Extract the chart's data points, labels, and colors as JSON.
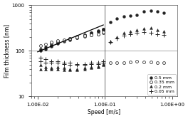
{
  "xlabel": "Speed [m/s]",
  "ylabel": "Film thickness [nm]",
  "xlim": [
    0.008,
    1.2
  ],
  "ylim": [
    10,
    1000
  ],
  "legend_labels": [
    "0.5 mm",
    "0.35 mm",
    "0.2 mm",
    "0.05 mm"
  ],
  "vline_x": 0.1,
  "hline_y": 100,
  "fit_line_x": [
    0.01,
    0.095
  ],
  "fit_line_y": [
    95,
    370
  ],
  "series_0_5mm": {
    "x": [
      0.011,
      0.011,
      0.013,
      0.013,
      0.016,
      0.016,
      0.016,
      0.02,
      0.02,
      0.02,
      0.025,
      0.025,
      0.025,
      0.03,
      0.03,
      0.03,
      0.038,
      0.038,
      0.038,
      0.05,
      0.05,
      0.05,
      0.063,
      0.063,
      0.063,
      0.079,
      0.079,
      0.079,
      0.095,
      0.095,
      0.095,
      0.12,
      0.15,
      0.19,
      0.24,
      0.3,
      0.38,
      0.48,
      0.6,
      0.76
    ],
    "y": [
      100,
      110,
      110,
      120,
      125,
      130,
      140,
      145,
      150,
      158,
      160,
      165,
      170,
      175,
      180,
      185,
      195,
      200,
      205,
      215,
      220,
      225,
      240,
      245,
      250,
      265,
      270,
      275,
      290,
      295,
      300,
      430,
      510,
      560,
      590,
      610,
      720,
      760,
      740,
      680
    ]
  },
  "series_0_35mm": {
    "x": [
      0.011,
      0.013,
      0.016,
      0.016,
      0.02,
      0.02,
      0.025,
      0.025,
      0.03,
      0.03,
      0.038,
      0.038,
      0.05,
      0.05,
      0.063,
      0.063,
      0.079,
      0.079,
      0.095,
      0.095,
      0.12,
      0.15,
      0.19,
      0.24,
      0.3,
      0.38,
      0.48,
      0.6,
      0.76
    ],
    "y": [
      130,
      140,
      150,
      155,
      160,
      165,
      170,
      175,
      185,
      190,
      195,
      200,
      210,
      215,
      220,
      225,
      230,
      235,
      250,
      255,
      55,
      55,
      55,
      57,
      58,
      56,
      56,
      54,
      54
    ]
  },
  "series_0_2mm": {
    "x": [
      0.011,
      0.011,
      0.013,
      0.013,
      0.016,
      0.016,
      0.02,
      0.02,
      0.025,
      0.025,
      0.03,
      0.03,
      0.038,
      0.038,
      0.05,
      0.05,
      0.063,
      0.063,
      0.079,
      0.079,
      0.095,
      0.095,
      0.12,
      0.15,
      0.19,
      0.24,
      0.3,
      0.38,
      0.48,
      0.6,
      0.76
    ],
    "y": [
      40,
      50,
      40,
      45,
      40,
      42,
      40,
      44,
      38,
      42,
      38,
      40,
      38,
      40,
      40,
      42,
      42,
      44,
      44,
      46,
      50,
      52,
      160,
      200,
      245,
      270,
      290,
      310,
      320,
      290,
      270
    ]
  },
  "series_0_05mm": {
    "x": [
      0.011,
      0.011,
      0.013,
      0.013,
      0.016,
      0.016,
      0.02,
      0.02,
      0.025,
      0.025,
      0.03,
      0.03,
      0.038,
      0.038,
      0.05,
      0.05,
      0.063,
      0.063,
      0.079,
      0.079,
      0.095,
      0.095,
      0.12,
      0.15,
      0.19,
      0.24,
      0.3,
      0.38,
      0.48,
      0.6,
      0.76
    ],
    "y": [
      60,
      70,
      55,
      65,
      55,
      60,
      55,
      58,
      52,
      55,
      50,
      55,
      50,
      52,
      50,
      52,
      52,
      54,
      52,
      55,
      55,
      58,
      155,
      190,
      215,
      235,
      250,
      255,
      245,
      235,
      225
    ]
  },
  "marker_size": 2.8,
  "legend_fontsize": 4.5,
  "tick_fontsize": 5,
  "label_fontsize": 5.5
}
